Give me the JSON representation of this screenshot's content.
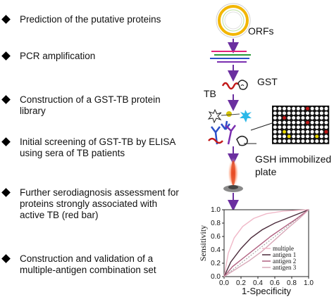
{
  "steps": [
    {
      "lines": [
        "Prediction of the putative proteins"
      ]
    },
    {
      "lines": [
        "PCR amplification"
      ]
    },
    {
      "lines": [
        "Construction of a GST-TB protein",
        "library"
      ]
    },
    {
      "lines": [
        "Initial screening of GST-TB by ELISA",
        "using sera of TB patients"
      ]
    },
    {
      "lines": [
        "Further serodiagnosis assessment for",
        "proteins strongly associated with",
        "active TB (red bar)"
      ]
    },
    {
      "lines": [
        "Construction and validation of  a",
        "multiple-antigen combination set"
      ]
    }
  ],
  "labels": {
    "orfs": "ORFs",
    "gst": "GST",
    "tb": "TB",
    "plate_line1": "GSH immobilized",
    "plate_line2": "plate"
  },
  "chart_data": {
    "type": "line",
    "xlabel": "1-Specificity",
    "ylabel": "Sensitivity",
    "xlim": [
      0,
      1
    ],
    "ylim": [
      0,
      1
    ],
    "x_ticks": [
      "0.0",
      "0.2",
      "0.4",
      "0.6",
      "0.8",
      "1.0"
    ],
    "y_ticks": [
      "0.0",
      "0.2",
      "0.4",
      "0.6",
      "0.8",
      "1.0"
    ],
    "legend_position": "bottom-right",
    "series": [
      {
        "name": "multiple",
        "color": "#f0b8c8",
        "points": [
          [
            0,
            0
          ],
          [
            0.05,
            0.35
          ],
          [
            0.12,
            0.58
          ],
          [
            0.22,
            0.75
          ],
          [
            0.35,
            0.87
          ],
          [
            0.5,
            0.94
          ],
          [
            0.7,
            0.98
          ],
          [
            1,
            1
          ]
        ]
      },
      {
        "name": "antigen 1",
        "color": "#4a2a3a",
        "points": [
          [
            0,
            0
          ],
          [
            0.08,
            0.22
          ],
          [
            0.2,
            0.42
          ],
          [
            0.32,
            0.58
          ],
          [
            0.45,
            0.7
          ],
          [
            0.6,
            0.8
          ],
          [
            0.8,
            0.9
          ],
          [
            1,
            1
          ]
        ]
      },
      {
        "name": "antigen 2",
        "color": "#b06080",
        "points": [
          [
            0,
            0
          ],
          [
            0.1,
            0.15
          ],
          [
            0.25,
            0.3
          ],
          [
            0.4,
            0.45
          ],
          [
            0.55,
            0.6
          ],
          [
            0.7,
            0.73
          ],
          [
            0.85,
            0.86
          ],
          [
            1,
            1
          ]
        ]
      },
      {
        "name": "antigen 3",
        "color": "#d8a8b8",
        "points": [
          [
            0,
            0
          ],
          [
            0.15,
            0.12
          ],
          [
            0.3,
            0.24
          ],
          [
            0.45,
            0.38
          ],
          [
            0.6,
            0.55
          ],
          [
            0.75,
            0.72
          ],
          [
            0.9,
            0.88
          ],
          [
            1,
            1
          ]
        ]
      }
    ],
    "reference_line": {
      "color": "#999999",
      "style": "dotted"
    }
  }
}
